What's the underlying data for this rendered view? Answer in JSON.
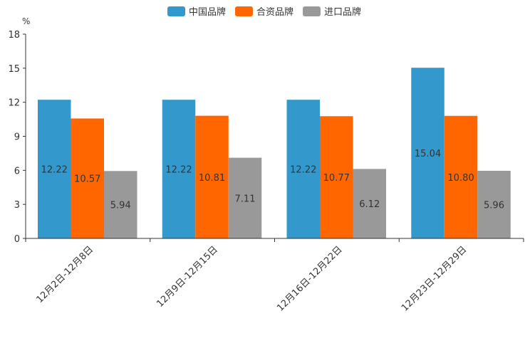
{
  "chart_data": {
    "type": "bar",
    "ylabel": "%",
    "ylim": [
      0,
      18
    ],
    "yticks": [
      0,
      3,
      6,
      9,
      12,
      15,
      18
    ],
    "categories": [
      "12月2日-12月8日",
      "12月9日-12月15日",
      "12月16日-12月22日",
      "12月23日-12月29日"
    ],
    "series": [
      {
        "name": "中国品牌",
        "color": "#3399CC",
        "values": [
          12.22,
          12.22,
          12.22,
          15.04
        ],
        "labels": [
          "12.22",
          "12.22",
          "12.22",
          "15.04"
        ]
      },
      {
        "name": "合资品牌",
        "color": "#FF6600",
        "values": [
          10.57,
          10.81,
          10.77,
          10.8
        ],
        "labels": [
          "10.57",
          "10.81",
          "10.77",
          "10.80"
        ]
      },
      {
        "name": "进口品牌",
        "color": "#999999",
        "values": [
          5.94,
          7.11,
          6.12,
          5.96
        ],
        "labels": [
          "5.94",
          "7.11",
          "6.12",
          "5.96"
        ]
      }
    ],
    "legend_position": "top-center",
    "grid": false
  }
}
